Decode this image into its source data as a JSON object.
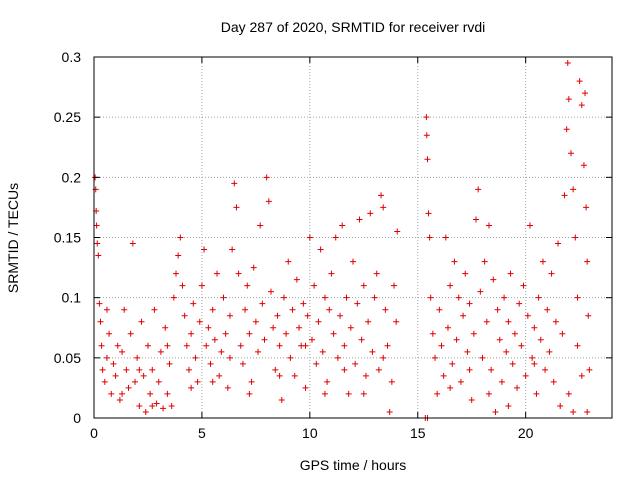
{
  "chart_data": {
    "type": "scatter",
    "title": "Day 287 of 2020, SRMTID for receiver rvdi",
    "xlabel": "GPS time / hours",
    "ylabel": "SRMTID / TECUs",
    "xlim": [
      0,
      24
    ],
    "ylim": [
      0,
      0.3
    ],
    "xticks": [
      0,
      5,
      10,
      15,
      20
    ],
    "xtick_labels": [
      "0",
      "5",
      "10",
      "15",
      "20"
    ],
    "yticks": [
      0,
      0.05,
      0.1,
      0.15,
      0.2,
      0.25,
      0.3
    ],
    "ytick_labels": [
      "0",
      "0.05",
      "0.1",
      "0.15",
      "0.2",
      "0.25",
      "0.3"
    ],
    "grid": true,
    "marker": "+",
    "color": "#e00000",
    "series": [
      {
        "name": "SRMTID",
        "points": [
          [
            0.05,
            0.2
          ],
          [
            0.08,
            0.19
          ],
          [
            0.1,
            0.172
          ],
          [
            0.12,
            0.16
          ],
          [
            0.15,
            0.145
          ],
          [
            0.2,
            0.135
          ],
          [
            0.25,
            0.095
          ],
          [
            0.3,
            0.08
          ],
          [
            0.35,
            0.06
          ],
          [
            0.4,
            0.04
          ],
          [
            0.5,
            0.03
          ],
          [
            0.6,
            0.05
          ],
          [
            0.7,
            0.07
          ],
          [
            0.8,
            0.02
          ],
          [
            0.9,
            0.045
          ],
          [
            1.0,
            0.035
          ],
          [
            1.1,
            0.06
          ],
          [
            1.2,
            0.015
          ],
          [
            1.3,
            0.055
          ],
          [
            1.4,
            0.09
          ],
          [
            1.5,
            0.04
          ],
          [
            1.6,
            0.025
          ],
          [
            1.7,
            0.07
          ],
          [
            1.8,
            0.145
          ],
          [
            1.9,
            0.03
          ],
          [
            2.0,
            0.05
          ],
          [
            2.1,
            0.01
          ],
          [
            2.2,
            0.08
          ],
          [
            2.3,
            0.035
          ],
          [
            2.4,
            0.005
          ],
          [
            2.5,
            0.06
          ],
          [
            2.6,
            0.02
          ],
          [
            2.7,
            0.04
          ],
          [
            2.8,
            0.09
          ],
          [
            2.9,
            0.012
          ],
          [
            3.0,
            0.03
          ],
          [
            3.1,
            0.055
          ],
          [
            3.2,
            0.008
          ],
          [
            3.3,
            0.075
          ],
          [
            3.4,
            0.02
          ],
          [
            3.5,
            0.045
          ],
          [
            3.6,
            0.01
          ],
          [
            3.7,
            0.1
          ],
          [
            3.8,
            0.12
          ],
          [
            3.9,
            0.135
          ],
          [
            4.0,
            0.15
          ],
          [
            4.1,
            0.11
          ],
          [
            4.2,
            0.085
          ],
          [
            4.3,
            0.06
          ],
          [
            4.4,
            0.04
          ],
          [
            4.5,
            0.07
          ],
          [
            4.6,
            0.095
          ],
          [
            4.7,
            0.05
          ],
          [
            4.8,
            0.03
          ],
          [
            4.9,
            0.08
          ],
          [
            5.0,
            0.11
          ],
          [
            5.1,
            0.14
          ],
          [
            5.2,
            0.06
          ],
          [
            5.3,
            0.075
          ],
          [
            5.4,
            0.045
          ],
          [
            5.5,
            0.09
          ],
          [
            5.6,
            0.065
          ],
          [
            5.7,
            0.12
          ],
          [
            5.8,
            0.035
          ],
          [
            5.9,
            0.055
          ],
          [
            6.0,
            0.1
          ],
          [
            6.1,
            0.07
          ],
          [
            6.2,
            0.025
          ],
          [
            6.3,
            0.085
          ],
          [
            6.4,
            0.14
          ],
          [
            6.5,
            0.195
          ],
          [
            6.6,
            0.175
          ],
          [
            6.7,
            0.12
          ],
          [
            6.8,
            0.06
          ],
          [
            6.9,
            0.045
          ],
          [
            7.0,
            0.09
          ],
          [
            7.1,
            0.11
          ],
          [
            7.2,
            0.07
          ],
          [
            7.3,
            0.03
          ],
          [
            7.4,
            0.125
          ],
          [
            7.5,
            0.08
          ],
          [
            7.6,
            0.055
          ],
          [
            7.7,
            0.16
          ],
          [
            7.8,
            0.095
          ],
          [
            7.9,
            0.065
          ],
          [
            8.0,
            0.2
          ],
          [
            8.1,
            0.18
          ],
          [
            8.2,
            0.105
          ],
          [
            8.3,
            0.075
          ],
          [
            8.4,
            0.04
          ],
          [
            8.5,
            0.085
          ],
          [
            8.6,
            0.06
          ],
          [
            8.7,
            0.015
          ],
          [
            8.8,
            0.1
          ],
          [
            8.9,
            0.07
          ],
          [
            9.0,
            0.13
          ],
          [
            9.1,
            0.05
          ],
          [
            9.2,
            0.09
          ],
          [
            9.3,
            0.035
          ],
          [
            9.4,
            0.115
          ],
          [
            9.5,
            0.075
          ],
          [
            9.6,
            0.06
          ],
          [
            9.7,
            0.095
          ],
          [
            9.8,
            0.025
          ],
          [
            9.9,
            0.085
          ],
          [
            10.0,
            0.15
          ],
          [
            10.1,
            0.065
          ],
          [
            10.2,
            0.11
          ],
          [
            10.3,
            0.045
          ],
          [
            10.4,
            0.08
          ],
          [
            10.5,
            0.14
          ],
          [
            10.6,
            0.055
          ],
          [
            10.7,
            0.1
          ],
          [
            10.8,
            0.03
          ],
          [
            10.9,
            0.09
          ],
          [
            11.0,
            0.12
          ],
          [
            11.1,
            0.07
          ],
          [
            11.2,
            0.15
          ],
          [
            11.3,
            0.05
          ],
          [
            11.4,
            0.085
          ],
          [
            11.5,
            0.16
          ],
          [
            11.6,
            0.06
          ],
          [
            11.7,
            0.1
          ],
          [
            11.8,
            0.02
          ],
          [
            11.9,
            0.075
          ],
          [
            12.0,
            0.13
          ],
          [
            12.1,
            0.045
          ],
          [
            12.2,
            0.095
          ],
          [
            12.3,
            0.165
          ],
          [
            12.4,
            0.065
          ],
          [
            12.5,
            0.11
          ],
          [
            12.6,
            0.035
          ],
          [
            12.7,
            0.08
          ],
          [
            12.8,
            0.17
          ],
          [
            12.9,
            0.055
          ],
          [
            13.0,
            0.1
          ],
          [
            13.1,
            0.12
          ],
          [
            13.2,
            0.04
          ],
          [
            13.3,
            0.185
          ],
          [
            13.4,
            0.175
          ],
          [
            13.5,
            0.09
          ],
          [
            13.6,
            0.06
          ],
          [
            13.7,
            0.005
          ],
          [
            13.8,
            0.03
          ],
          [
            13.9,
            0.11
          ],
          [
            14.0,
            0.08
          ],
          [
            14.05,
            0.155
          ],
          [
            15.35,
            0.0
          ],
          [
            15.45,
            0.0
          ],
          [
            15.4,
            0.25
          ],
          [
            15.42,
            0.235
          ],
          [
            15.45,
            0.215
          ],
          [
            15.5,
            0.17
          ],
          [
            15.55,
            0.15
          ],
          [
            15.6,
            0.1
          ],
          [
            15.7,
            0.07
          ],
          [
            15.8,
            0.05
          ],
          [
            15.9,
            0.02
          ],
          [
            16.0,
            0.09
          ],
          [
            16.1,
            0.06
          ],
          [
            16.2,
            0.035
          ],
          [
            16.3,
            0.15
          ],
          [
            16.4,
            0.075
          ],
          [
            16.5,
            0.11
          ],
          [
            16.6,
            0.045
          ],
          [
            16.7,
            0.13
          ],
          [
            16.8,
            0.065
          ],
          [
            16.9,
            0.1
          ],
          [
            17.0,
            0.03
          ],
          [
            17.1,
            0.085
          ],
          [
            17.2,
            0.12
          ],
          [
            17.3,
            0.055
          ],
          [
            17.4,
            0.095
          ],
          [
            17.5,
            0.015
          ],
          [
            17.6,
            0.07
          ],
          [
            17.7,
            0.165
          ],
          [
            17.8,
            0.19
          ],
          [
            17.9,
            0.105
          ],
          [
            18.0,
            0.05
          ],
          [
            18.1,
            0.13
          ],
          [
            18.2,
            0.08
          ],
          [
            18.3,
            0.16
          ],
          [
            18.4,
            0.04
          ],
          [
            18.5,
            0.115
          ],
          [
            18.6,
            0.005
          ],
          [
            18.7,
            0.09
          ],
          [
            18.8,
            0.065
          ],
          [
            18.9,
            0.03
          ],
          [
            19.0,
            0.1
          ],
          [
            19.1,
            0.055
          ],
          [
            19.2,
            0.08
          ],
          [
            19.3,
            0.12
          ],
          [
            19.4,
            0.045
          ],
          [
            19.5,
            0.07
          ],
          [
            19.6,
            0.025
          ],
          [
            19.7,
            0.095
          ],
          [
            19.8,
            0.06
          ],
          [
            19.9,
            0.11
          ],
          [
            20.0,
            0.035
          ],
          [
            20.1,
            0.085
          ],
          [
            20.2,
            0.16
          ],
          [
            20.3,
            0.05
          ],
          [
            20.4,
            0.075
          ],
          [
            20.5,
            0.02
          ],
          [
            20.6,
            0.1
          ],
          [
            20.7,
            0.065
          ],
          [
            20.8,
            0.13
          ],
          [
            20.9,
            0.04
          ],
          [
            21.0,
            0.09
          ],
          [
            21.1,
            0.055
          ],
          [
            21.2,
            0.12
          ],
          [
            21.3,
            0.03
          ],
          [
            21.4,
            0.08
          ],
          [
            21.5,
            0.145
          ],
          [
            21.6,
            0.01
          ],
          [
            21.7,
            0.07
          ],
          [
            21.8,
            0.185
          ],
          [
            21.9,
            0.24
          ],
          [
            21.95,
            0.295
          ],
          [
            22.0,
            0.265
          ],
          [
            22.1,
            0.22
          ],
          [
            22.2,
            0.19
          ],
          [
            22.3,
            0.15
          ],
          [
            22.4,
            0.1
          ],
          [
            22.5,
            0.28
          ],
          [
            22.6,
            0.26
          ],
          [
            22.7,
            0.21
          ],
          [
            22.75,
            0.27
          ],
          [
            22.8,
            0.175
          ],
          [
            22.85,
            0.13
          ],
          [
            22.9,
            0.085
          ],
          [
            22.95,
            0.04
          ],
          [
            22.85,
            0.005
          ],
          [
            22.6,
            0.035
          ],
          [
            22.4,
            0.06
          ],
          [
            22.2,
            0.005
          ],
          [
            22.0,
            0.02
          ],
          [
            0.6,
            0.09
          ],
          [
            1.3,
            0.02
          ],
          [
            2.1,
            0.04
          ],
          [
            2.7,
            0.01
          ],
          [
            3.4,
            0.06
          ],
          [
            4.5,
            0.025
          ],
          [
            5.5,
            0.03
          ],
          [
            6.3,
            0.05
          ],
          [
            7.2,
            0.02
          ],
          [
            8.6,
            0.035
          ],
          [
            9.8,
            0.06
          ],
          [
            10.7,
            0.02
          ],
          [
            11.6,
            0.04
          ],
          [
            12.5,
            0.02
          ],
          [
            13.4,
            0.05
          ],
          [
            16.5,
            0.025
          ],
          [
            17.4,
            0.04
          ],
          [
            18.3,
            0.02
          ],
          [
            19.2,
            0.01
          ],
          [
            20.4,
            0.045
          ]
        ]
      }
    ]
  }
}
